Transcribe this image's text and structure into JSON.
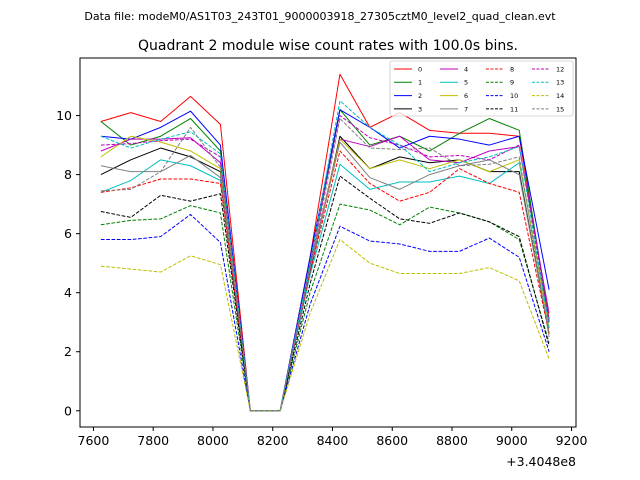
{
  "chart_data": {
    "type": "line",
    "suptitle": "Data file: modeM0/AS1T03_243T01_9000003918_27305cztM0_level2_quad_clean.evt",
    "title": "Quadrant 2 module wise count rates with 100.0s bins.",
    "xlabel": "",
    "ylabel": "",
    "x_offset_label": "+3.4048e8",
    "xlim": [
      7555,
      9215
    ],
    "ylim": [
      -0.55,
      11.95
    ],
    "xticks": [
      7600,
      7800,
      8000,
      8200,
      8400,
      8600,
      8800,
      9000,
      9200
    ],
    "yticks": [
      0,
      2,
      4,
      6,
      8,
      10
    ],
    "legend_position": "top-right",
    "x": [
      7625,
      7725,
      7825,
      7925,
      8025,
      8125,
      8225,
      8325,
      8425,
      8525,
      8625,
      8725,
      8825,
      8925,
      9025,
      9125
    ],
    "series": [
      {
        "name": "0",
        "color": "#ff0000",
        "dash": "solid",
        "values": [
          9.8,
          10.1,
          9.8,
          10.65,
          9.7,
          0,
          0,
          5.2,
          11.4,
          9.6,
          10.1,
          9.5,
          9.4,
          9.4,
          9.3,
          3.1
        ]
      },
      {
        "name": "1",
        "color": "#008000",
        "dash": "solid",
        "values": [
          9.8,
          9.0,
          9.3,
          9.9,
          8.8,
          0,
          0,
          5.0,
          10.2,
          9.0,
          9.3,
          8.8,
          9.4,
          9.9,
          9.5,
          3.0
        ]
      },
      {
        "name": "2",
        "color": "#0000ff",
        "dash": "solid",
        "values": [
          9.3,
          9.2,
          9.6,
          10.15,
          9.0,
          0,
          0,
          5.2,
          10.2,
          9.6,
          8.9,
          9.3,
          9.2,
          9.0,
          9.3,
          4.1
        ]
      },
      {
        "name": "3",
        "color": "#000000",
        "dash": "solid",
        "values": [
          8.0,
          8.5,
          8.9,
          8.6,
          8.1,
          0,
          0,
          4.7,
          9.3,
          8.2,
          8.6,
          8.4,
          8.5,
          8.1,
          8.1,
          2.6
        ]
      },
      {
        "name": "4",
        "color": "#bf00bf",
        "dash": "solid",
        "values": [
          8.8,
          9.2,
          9.2,
          9.25,
          8.4,
          0,
          0,
          4.9,
          9.2,
          8.95,
          9.3,
          8.5,
          8.4,
          8.8,
          8.95,
          3.3
        ]
      },
      {
        "name": "5",
        "color": "#00bfbf",
        "dash": "solid",
        "values": [
          7.4,
          7.8,
          8.5,
          8.3,
          7.8,
          0,
          0,
          4.6,
          8.35,
          7.5,
          7.75,
          7.75,
          7.95,
          7.7,
          8.4,
          3.0
        ]
      },
      {
        "name": "6",
        "color": "#bfbf00",
        "dash": "solid",
        "values": [
          8.6,
          9.3,
          9.1,
          8.8,
          8.2,
          0,
          0,
          4.8,
          9.2,
          8.2,
          8.5,
          8.2,
          8.5,
          8.1,
          8.5,
          2.8
        ]
      },
      {
        "name": "7",
        "color": "#808080",
        "dash": "solid",
        "values": [
          8.3,
          8.1,
          8.1,
          8.65,
          7.9,
          0,
          0,
          4.8,
          9.1,
          7.9,
          7.5,
          8.0,
          8.3,
          8.5,
          8.0,
          2.6
        ]
      },
      {
        "name": "8",
        "color": "#ff0000",
        "dash": "dashed",
        "values": [
          7.4,
          7.55,
          7.85,
          7.85,
          7.7,
          0,
          0,
          4.7,
          8.8,
          7.7,
          7.1,
          7.4,
          8.2,
          7.7,
          7.4,
          2.6
        ]
      },
      {
        "name": "9",
        "color": "#008000",
        "dash": "dashed",
        "values": [
          6.3,
          6.45,
          6.5,
          6.95,
          6.7,
          0,
          0,
          4.0,
          7.0,
          6.8,
          6.3,
          6.9,
          6.7,
          6.4,
          5.8,
          2.3
        ]
      },
      {
        "name": "10",
        "color": "#0000ff",
        "dash": "dashed",
        "values": [
          5.8,
          5.8,
          5.9,
          6.65,
          5.7,
          0,
          0,
          3.6,
          6.25,
          5.75,
          5.65,
          5.4,
          5.4,
          5.85,
          5.2,
          2.0
        ]
      },
      {
        "name": "11",
        "color": "#000000",
        "dash": "dashed",
        "values": [
          6.75,
          6.55,
          7.3,
          7.1,
          7.35,
          0,
          0,
          4.3,
          7.95,
          7.2,
          6.5,
          6.35,
          6.7,
          6.4,
          5.9,
          2.2
        ]
      },
      {
        "name": "12",
        "color": "#bf00bf",
        "dash": "dashed",
        "values": [
          9.0,
          9.05,
          9.15,
          9.2,
          8.6,
          0,
          0,
          5.0,
          10.0,
          9.25,
          9.0,
          8.6,
          8.65,
          8.5,
          9.0,
          3.0
        ]
      },
      {
        "name": "13",
        "color": "#00bfbf",
        "dash": "dashed",
        "values": [
          9.3,
          8.9,
          9.2,
          9.45,
          8.7,
          0,
          0,
          5.0,
          10.5,
          9.6,
          9.0,
          8.1,
          8.4,
          8.6,
          8.95,
          2.8
        ]
      },
      {
        "name": "14",
        "color": "#bfbf00",
        "dash": "dashed",
        "values": [
          4.9,
          4.8,
          4.7,
          5.25,
          4.95,
          0,
          0,
          3.3,
          5.8,
          5.0,
          4.65,
          4.65,
          4.65,
          4.85,
          4.4,
          1.75
        ]
      },
      {
        "name": "15",
        "color": "#808080",
        "dash": "dashed",
        "values": [
          7.45,
          7.5,
          8.1,
          9.6,
          8.25,
          0,
          0,
          4.8,
          9.9,
          8.9,
          8.85,
          8.9,
          8.3,
          8.35,
          8.6,
          2.5
        ]
      }
    ]
  }
}
